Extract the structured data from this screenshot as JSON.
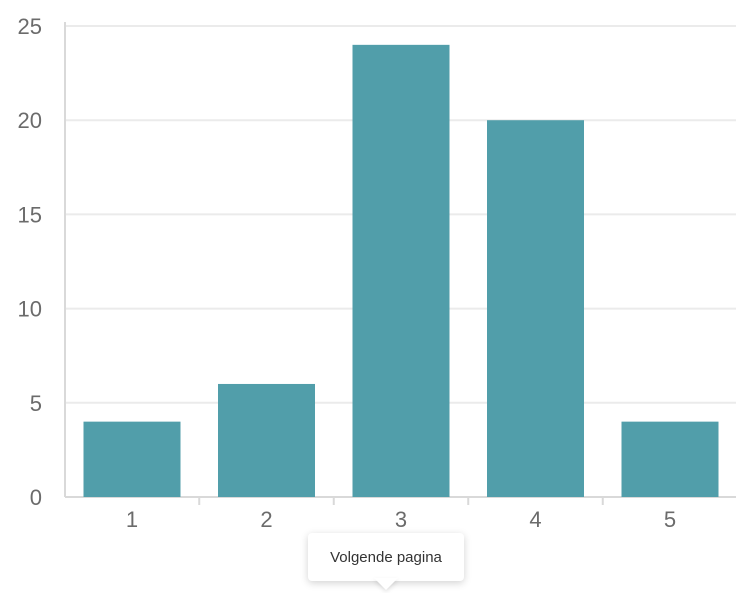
{
  "chart_data": {
    "type": "bar",
    "categories": [
      "1",
      "2",
      "3",
      "4",
      "5"
    ],
    "values": [
      4,
      6,
      24,
      20,
      4
    ],
    "ylim": [
      0,
      25
    ],
    "yticks": [
      0,
      5,
      10,
      15,
      20,
      25
    ],
    "grid": true,
    "colors": {
      "bar": "#519eaa",
      "grid": "#ebebeb",
      "axis": "#d9d9d9",
      "tick_text": "#6b6b6b"
    }
  },
  "tooltip": {
    "text": "Volgende pagina"
  }
}
